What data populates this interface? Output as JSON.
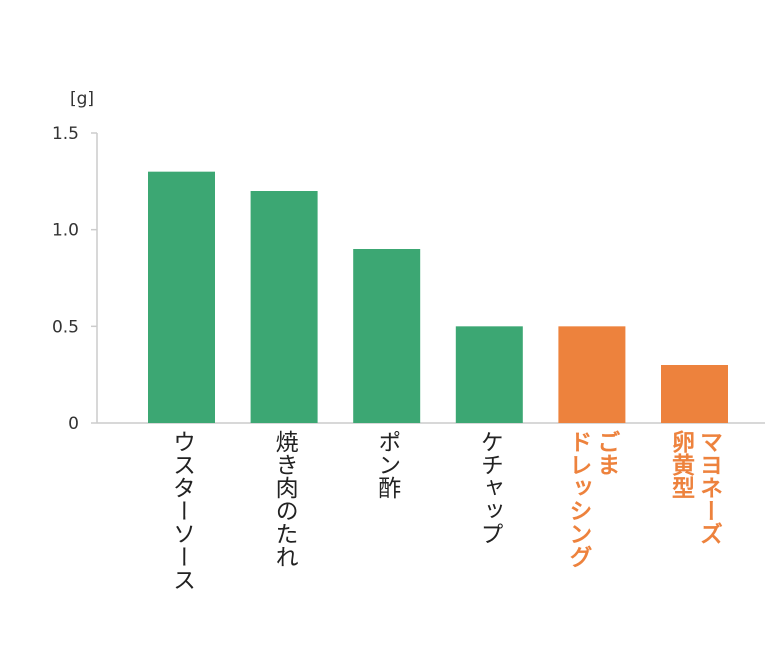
{
  "chart_data": {
    "type": "bar",
    "ylabel": "[g]",
    "ylim": [
      0,
      1.5
    ],
    "yticks": [
      {
        "value": 0,
        "label": "0"
      },
      {
        "value": 0.5,
        "label": "0.5"
      },
      {
        "value": 1.0,
        "label": "1.0"
      },
      {
        "value": 1.5,
        "label": "1.5"
      }
    ],
    "grid": false,
    "legend": "none",
    "colors": {
      "green": "#3ca773",
      "orange": "#ed823d",
      "axis": "#cccccc",
      "text": "#222222"
    },
    "bars": [
      {
        "lines": [
          "ウスターソース"
        ],
        "value": 1.3,
        "color": "green"
      },
      {
        "lines": [
          "焼き肉のたれ"
        ],
        "value": 1.2,
        "color": "green"
      },
      {
        "lines": [
          "ポン酢"
        ],
        "value": 0.9,
        "color": "green"
      },
      {
        "lines": [
          "ケチャップ"
        ],
        "value": 0.5,
        "color": "green"
      },
      {
        "lines": [
          "ごま",
          "ドレッシング"
        ],
        "value": 0.5,
        "color": "orange"
      },
      {
        "lines": [
          "マヨネーズ",
          "卵黄型"
        ],
        "value": 0.3,
        "color": "orange"
      }
    ]
  }
}
